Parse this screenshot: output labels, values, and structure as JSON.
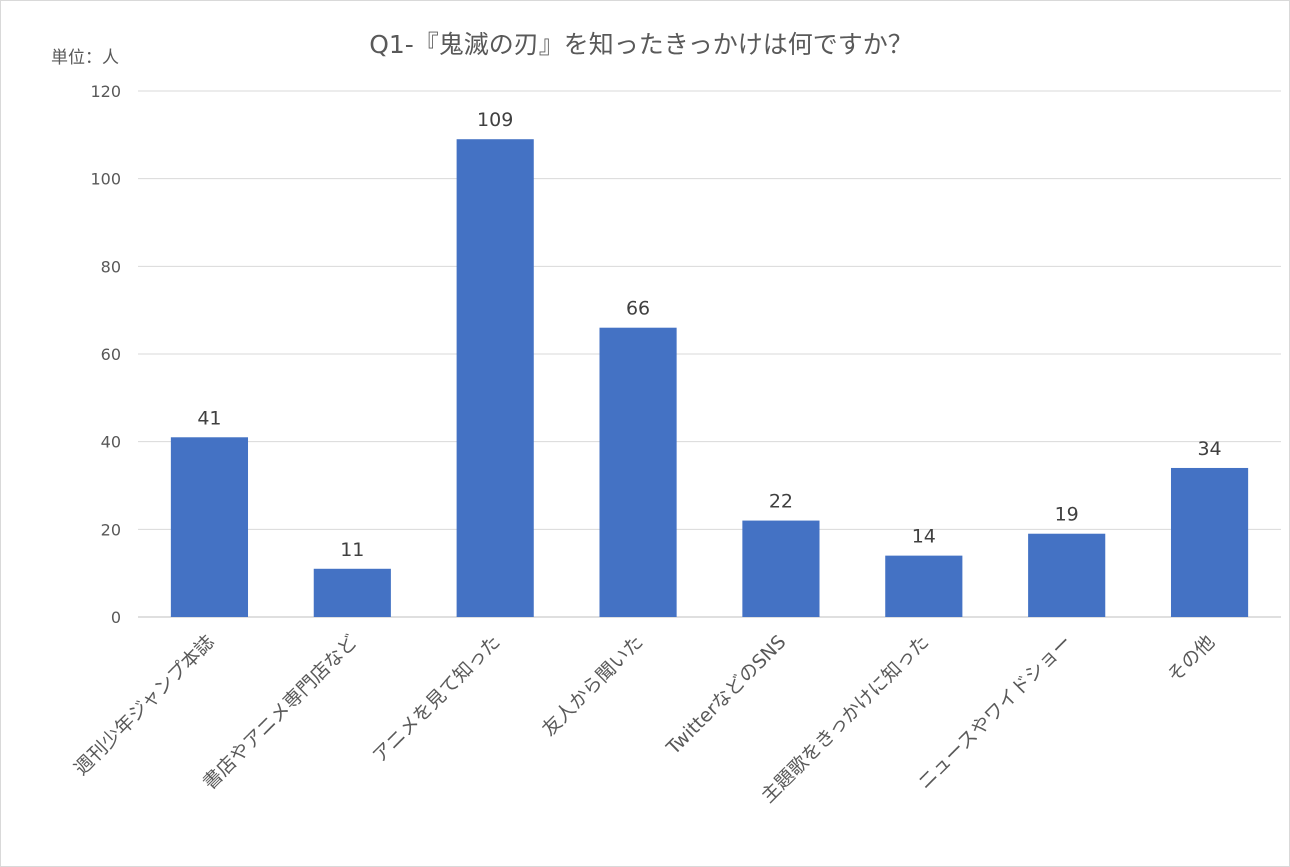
{
  "chart_data": {
    "type": "bar",
    "title": "Q1-『鬼滅の刃』を知ったきっかけは何ですか？",
    "unit_label": "単位：人",
    "categories": [
      "週刊少年ジャンプ本誌",
      "書店やアニメ専門店など",
      "アニメを見て知った",
      "友人から聞いた",
      "TwitterなどのSNS",
      "主題歌をきっかけに知った",
      "ニュースやワイドショー",
      "その他"
    ],
    "values": [
      41,
      11,
      109,
      66,
      22,
      14,
      19,
      34
    ],
    "ylim": [
      0,
      120
    ],
    "yticks": [
      0,
      20,
      40,
      60,
      80,
      100,
      120
    ],
    "xlabel": "",
    "ylabel": "",
    "grid": true,
    "legend": "none",
    "data_labels": true,
    "bar_color": "#4472c4"
  }
}
